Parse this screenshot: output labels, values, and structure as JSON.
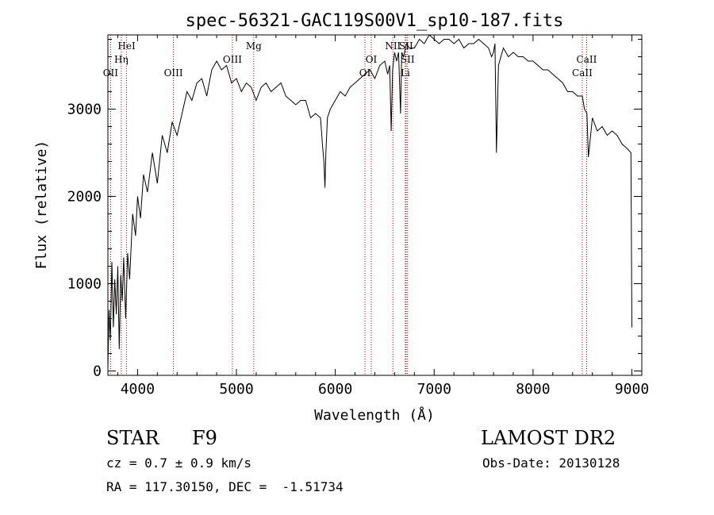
{
  "chart_data": {
    "type": "line",
    "title": "spec-56321-GAC119S00V1_sp10-187.fits",
    "xlabel": "Wavelength (Å)",
    "ylabel": "Flux (relative)",
    "xlim": [
      3700,
      9100
    ],
    "ylim": [
      -50,
      3850
    ],
    "xticks": [
      4000,
      5000,
      6000,
      7000,
      8000,
      9000
    ],
    "yticks": [
      0,
      1000,
      2000,
      3000
    ],
    "grid": false,
    "line_color": "#000000",
    "marker_color": "#aa0000",
    "series": [
      {
        "x": [
          3700,
          3712,
          3725,
          3740,
          3755,
          3770,
          3785,
          3800,
          3815,
          3830,
          3845,
          3860,
          3880,
          3900,
          3920,
          3950,
          3980,
          4000,
          4030,
          4060,
          4100,
          4150,
          4200,
          4250,
          4300,
          4350,
          4400,
          4450,
          4500,
          4550,
          4600,
          4650,
          4700,
          4750,
          4800,
          4850,
          4900,
          4950,
          5000,
          5050,
          5100,
          5150,
          5200,
          5250,
          5300,
          5350,
          5400,
          5450,
          5500,
          5550,
          5600,
          5650,
          5700,
          5750,
          5800,
          5850,
          5870,
          5885,
          5895,
          5905,
          5920,
          5950,
          6000,
          6050,
          6100,
          6150,
          6200,
          6250,
          6300,
          6350,
          6400,
          6450,
          6500,
          6530,
          6550,
          6565,
          6580,
          6600,
          6620,
          6640,
          6660,
          6672,
          6690,
          6720,
          6750,
          6800,
          6850,
          6900,
          6950,
          7000,
          7050,
          7100,
          7150,
          7200,
          7250,
          7300,
          7350,
          7400,
          7450,
          7500,
          7550,
          7580,
          7600,
          7615,
          7630,
          7650,
          7700,
          7750,
          7800,
          7850,
          7900,
          7950,
          8000,
          8050,
          8100,
          8150,
          8200,
          8250,
          8300,
          8350,
          8400,
          8450,
          8498,
          8520,
          8545,
          8560,
          8600,
          8650,
          8700,
          8750,
          8800,
          8850,
          8900,
          8950,
          8990,
          9000
        ],
        "values": [
          40,
          700,
          350,
          1250,
          500,
          1050,
          650,
          1200,
          250,
          1100,
          800,
          1300,
          600,
          1350,
          1050,
          1800,
          1550,
          2000,
          1750,
          2250,
          2050,
          2500,
          2150,
          2700,
          2500,
          2850,
          2700,
          2950,
          3200,
          3100,
          3300,
          3350,
          3150,
          3450,
          3550,
          3450,
          3500,
          3300,
          3350,
          3200,
          3300,
          3250,
          3100,
          3250,
          3300,
          3200,
          3250,
          3300,
          3150,
          3100,
          3050,
          3100,
          3100,
          2900,
          2950,
          2900,
          2600,
          2400,
          2100,
          2500,
          2900,
          3000,
          3100,
          3200,
          3150,
          3250,
          3300,
          3350,
          3400,
          3450,
          3350,
          3500,
          3550,
          3400,
          3500,
          2750,
          3450,
          3650,
          3550,
          3650,
          2950,
          3650,
          3600,
          3750,
          3700,
          3700,
          3800,
          3750,
          3850,
          3800,
          3750,
          3800,
          3800,
          3750,
          3800,
          3700,
          3750,
          3750,
          3800,
          3750,
          3700,
          3600,
          3650,
          3750,
          2500,
          3500,
          3700,
          3600,
          3650,
          3600,
          3600,
          3550,
          3550,
          3500,
          3450,
          3450,
          3400,
          3350,
          3300,
          3200,
          3200,
          3150,
          3150,
          3000,
          2950,
          2450,
          2900,
          2750,
          2800,
          2700,
          2750,
          2700,
          2600,
          2550,
          2500,
          500
        ]
      }
    ],
    "line_markers": [
      {
        "label": "OII",
        "x": 3727,
        "label_row": 3
      },
      {
        "label": "Hη",
        "x": 3835,
        "label_row": 2
      },
      {
        "label": "HeI",
        "x": 3889,
        "label_row": 1
      },
      {
        "label": "OIII",
        "x": 4363,
        "label_row": 3
      },
      {
        "label": "OIII",
        "x": 4959,
        "label_row": 2
      },
      {
        "label": "Mg",
        "x": 5175,
        "label_row": 1
      },
      {
        "label": "OI",
        "x": 6300,
        "label_row": 3
      },
      {
        "label": "OI",
        "x": 6364,
        "label_row": 2
      },
      {
        "label": "NII",
        "x": 6583,
        "label_row": 1
      },
      {
        "label": "SII",
        "x": 6716,
        "label_row": 1
      },
      {
        "label": "SII",
        "x": 6731,
        "label_row": 2
      },
      {
        "label": "Li",
        "x": 6708,
        "label_row": 3
      },
      {
        "label": "CaII",
        "x": 8542,
        "label_row": 2
      },
      {
        "label": "CaII",
        "x": 8498,
        "label_row": 3
      }
    ]
  },
  "info": {
    "class": "STAR",
    "subclass": "F9",
    "survey": "LAMOST DR2",
    "cz": "cz = 0.7 ± 0.9 km/s",
    "obs_date": "Obs-Date: 20130128",
    "coords": "RA = 117.30150, DEC =  -1.51734"
  }
}
